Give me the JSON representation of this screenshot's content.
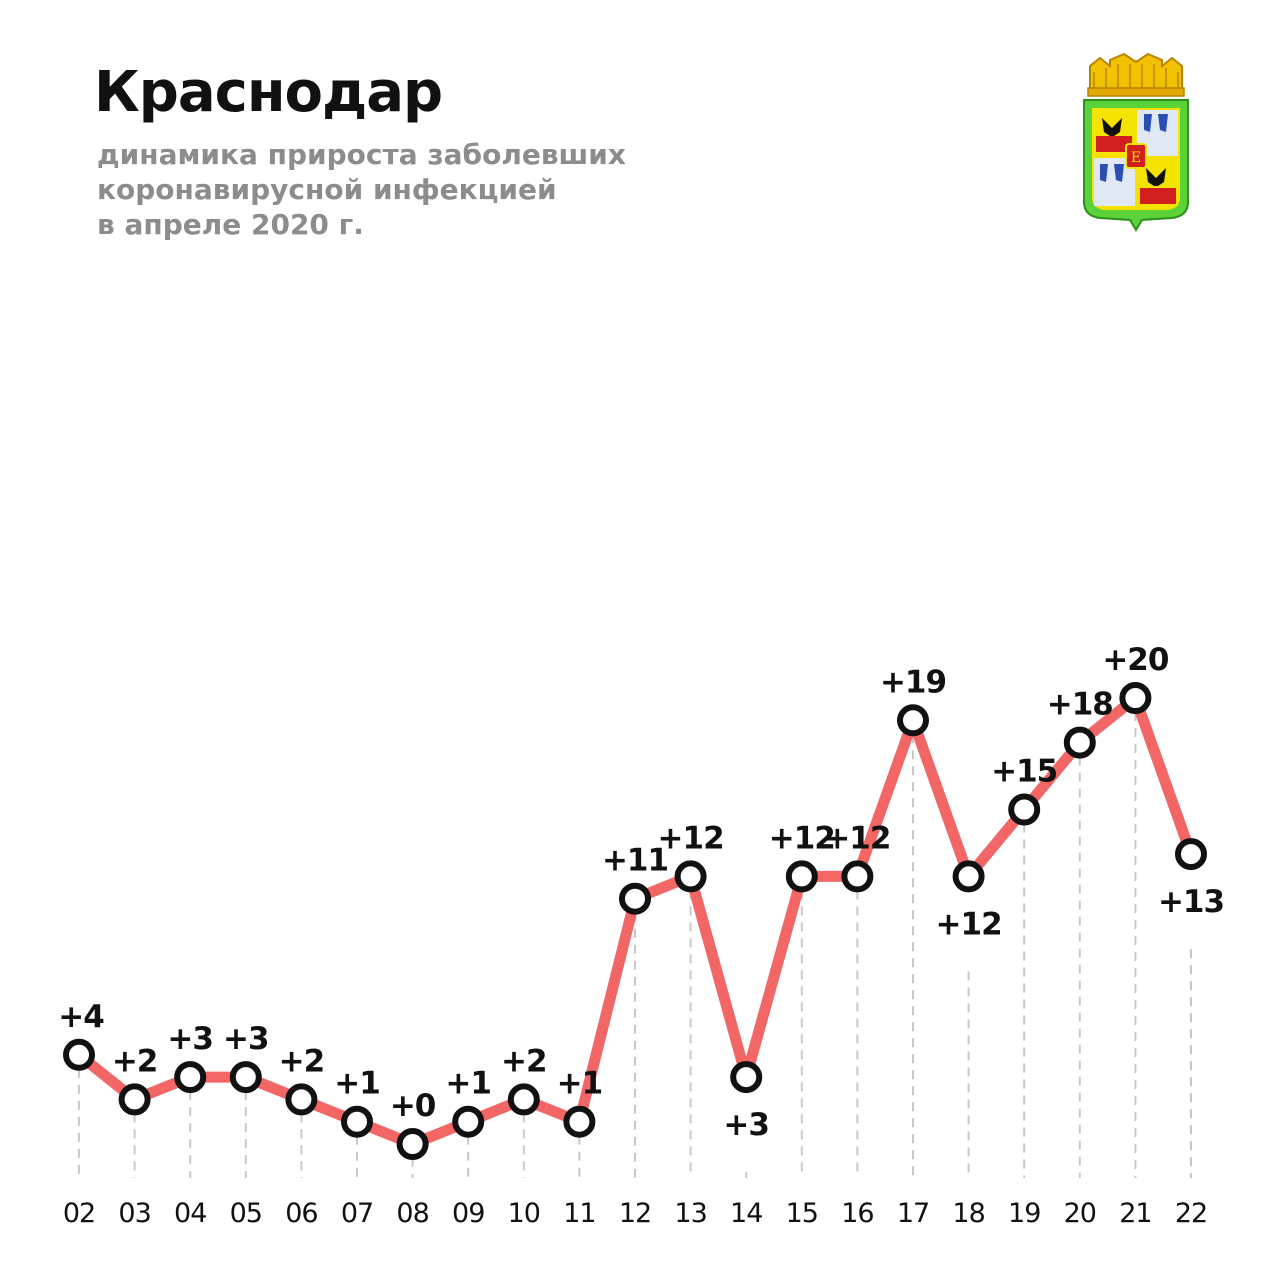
{
  "header": {
    "title": "Краснодар",
    "subtitle_lines": [
      "динамика прироста заболевших",
      "коронавирусной инфекцией",
      "в апреле 2020 г."
    ]
  },
  "emblem": {
    "icon": "krasnodar-coat-of-arms-icon"
  },
  "colors": {
    "line": "#f26666",
    "marker_stroke": "#111111",
    "marker_fill": "#ffffff",
    "title": "#111111",
    "subtitle": "#8c8c8c",
    "dashes": "#c8c8c8"
  },
  "chart_data": {
    "type": "line",
    "categories": [
      "02",
      "03",
      "04",
      "05",
      "06",
      "07",
      "08",
      "09",
      "10",
      "11",
      "12",
      "13",
      "14",
      "15",
      "16",
      "17",
      "18",
      "19",
      "20",
      "21",
      "22"
    ],
    "values": [
      4,
      2,
      3,
      3,
      2,
      1,
      0,
      1,
      2,
      1,
      11,
      12,
      3,
      12,
      12,
      19,
      12,
      15,
      18,
      20,
      13
    ],
    "data_labels": [
      "+4",
      "+2",
      "+3",
      "+3",
      "+2",
      "+1",
      "+0",
      "+1",
      "+2",
      "+1",
      "+11",
      "+12",
      "+3",
      "+12",
      "+12",
      "+19",
      "+12",
      "+15",
      "+18",
      "+20",
      "+13"
    ],
    "label_positions": [
      "above",
      "above",
      "above",
      "above",
      "above",
      "above",
      "above",
      "above",
      "above",
      "above",
      "above",
      "above",
      "below",
      "above",
      "above",
      "above",
      "below",
      "above",
      "above",
      "above",
      "below"
    ],
    "xlabel": "",
    "ylabel": "",
    "ylim": [
      0,
      20
    ],
    "grid": "vertical dashed drop lines",
    "legend": "none"
  }
}
